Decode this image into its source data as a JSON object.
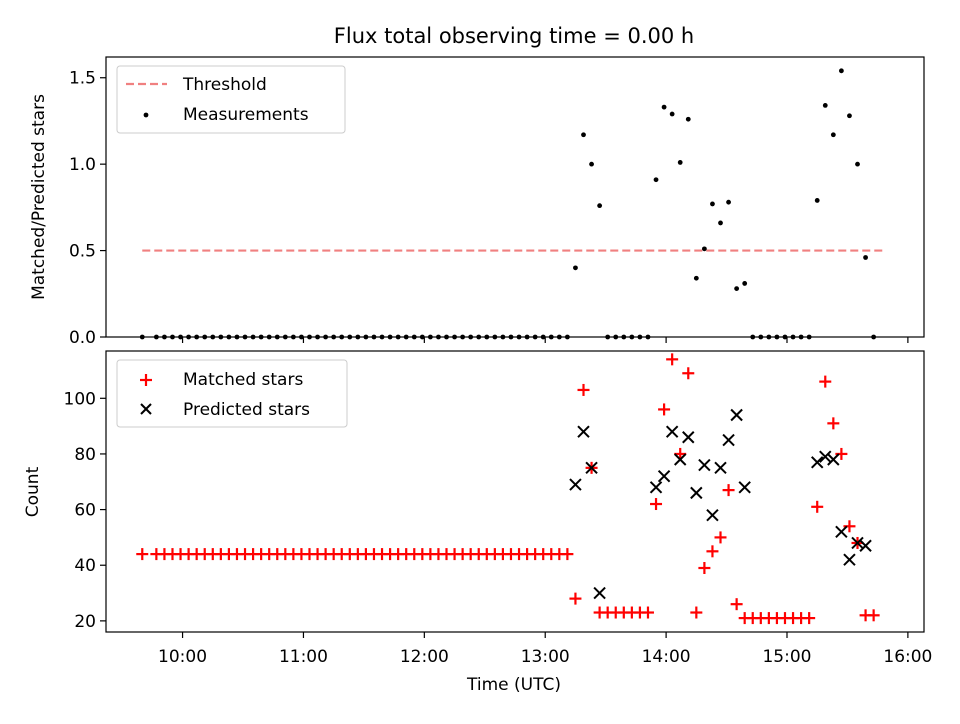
{
  "title": "Flux total observing time = 0.00 h",
  "chart_data": [
    {
      "type": "scatter",
      "ylabel": "Matched/Predicted stars",
      "xlabel": "",
      "xlim": [
        "09:22",
        "16:08"
      ],
      "ylim": [
        0,
        1.62
      ],
      "xticks": [
        "10:00",
        "11:00",
        "12:00",
        "13:00",
        "14:00",
        "15:00",
        "16:00"
      ],
      "yticks": [
        0.0,
        0.5,
        1.0,
        1.5
      ],
      "ytick_labels": [
        "0.0",
        "0.5",
        "1.0",
        "1.5"
      ],
      "legend_position": "upper-left",
      "grid": false,
      "threshold": {
        "name": "Threshold",
        "value": 0.5,
        "x_start": "09:40",
        "x_end": "15:48",
        "color": "#f08080",
        "style": "dashed"
      },
      "series": [
        {
          "name": "Measurements",
          "marker": "dot",
          "color": "#000000",
          "points": [
            [
              "09:40",
              0
            ],
            [
              "09:47",
              0
            ],
            [
              "09:51",
              0
            ],
            [
              "09:55",
              0
            ],
            [
              "09:59",
              0
            ],
            [
              "10:03",
              0
            ],
            [
              "10:07",
              0
            ],
            [
              "10:11",
              0
            ],
            [
              "10:15",
              0
            ],
            [
              "10:19",
              0
            ],
            [
              "10:23",
              0
            ],
            [
              "10:27",
              0
            ],
            [
              "10:31",
              0
            ],
            [
              "10:35",
              0
            ],
            [
              "10:39",
              0
            ],
            [
              "10:43",
              0
            ],
            [
              "10:47",
              0
            ],
            [
              "10:51",
              0
            ],
            [
              "10:55",
              0
            ],
            [
              "10:59",
              0
            ],
            [
              "11:03",
              0
            ],
            [
              "11:07",
              0
            ],
            [
              "11:11",
              0
            ],
            [
              "11:15",
              0
            ],
            [
              "11:19",
              0
            ],
            [
              "11:23",
              0
            ],
            [
              "11:27",
              0
            ],
            [
              "11:31",
              0
            ],
            [
              "11:35",
              0
            ],
            [
              "11:39",
              0
            ],
            [
              "11:43",
              0
            ],
            [
              "11:47",
              0
            ],
            [
              "11:51",
              0
            ],
            [
              "11:55",
              0
            ],
            [
              "11:59",
              0
            ],
            [
              "12:03",
              0
            ],
            [
              "12:07",
              0
            ],
            [
              "12:11",
              0
            ],
            [
              "12:15",
              0
            ],
            [
              "12:19",
              0
            ],
            [
              "12:23",
              0
            ],
            [
              "12:27",
              0
            ],
            [
              "12:31",
              0
            ],
            [
              "12:35",
              0
            ],
            [
              "12:39",
              0
            ],
            [
              "12:43",
              0
            ],
            [
              "12:47",
              0
            ],
            [
              "12:51",
              0
            ],
            [
              "12:55",
              0
            ],
            [
              "12:59",
              0
            ],
            [
              "13:03",
              0
            ],
            [
              "13:07",
              0
            ],
            [
              "13:11",
              0
            ],
            [
              "13:15",
              0.4
            ],
            [
              "13:19",
              1.17
            ],
            [
              "13:23",
              1.0
            ],
            [
              "13:27",
              0.76
            ],
            [
              "13:31",
              0
            ],
            [
              "13:35",
              0
            ],
            [
              "13:39",
              0
            ],
            [
              "13:43",
              0
            ],
            [
              "13:47",
              0
            ],
            [
              "13:51",
              0
            ],
            [
              "13:55",
              0.91
            ],
            [
              "13:59",
              1.33
            ],
            [
              "14:03",
              1.29
            ],
            [
              "14:07",
              1.01
            ],
            [
              "14:11",
              1.26
            ],
            [
              "14:15",
              0.34
            ],
            [
              "14:19",
              0.51
            ],
            [
              "14:23",
              0.77
            ],
            [
              "14:27",
              0.66
            ],
            [
              "14:31",
              0.78
            ],
            [
              "14:35",
              0.28
            ],
            [
              "14:39",
              0.31
            ],
            [
              "14:43",
              0
            ],
            [
              "14:47",
              0
            ],
            [
              "14:51",
              0
            ],
            [
              "14:55",
              0
            ],
            [
              "14:59",
              0
            ],
            [
              "15:03",
              0
            ],
            [
              "15:07",
              0
            ],
            [
              "15:11",
              0
            ],
            [
              "15:15",
              0.79
            ],
            [
              "15:19",
              1.34
            ],
            [
              "15:23",
              1.17
            ],
            [
              "15:27",
              1.54
            ],
            [
              "15:31",
              1.28
            ],
            [
              "15:35",
              1.0
            ],
            [
              "15:39",
              0.46
            ],
            [
              "15:43",
              0
            ]
          ]
        }
      ]
    },
    {
      "type": "scatter",
      "ylabel": "Count",
      "xlabel": "Time (UTC)",
      "xlim": [
        "09:22",
        "16:08"
      ],
      "ylim": [
        16,
        117
      ],
      "xticks": [
        "10:00",
        "11:00",
        "12:00",
        "13:00",
        "14:00",
        "15:00",
        "16:00"
      ],
      "yticks": [
        20,
        40,
        60,
        80,
        100
      ],
      "legend_position": "upper-left",
      "grid": false,
      "series": [
        {
          "name": "Matched stars",
          "marker": "plus",
          "color": "#ff0000",
          "points": [
            [
              "09:40",
              44
            ],
            [
              "09:47",
              44
            ],
            [
              "09:51",
              44
            ],
            [
              "09:55",
              44
            ],
            [
              "09:59",
              44
            ],
            [
              "10:03",
              44
            ],
            [
              "10:07",
              44
            ],
            [
              "10:11",
              44
            ],
            [
              "10:15",
              44
            ],
            [
              "10:19",
              44
            ],
            [
              "10:23",
              44
            ],
            [
              "10:27",
              44
            ],
            [
              "10:31",
              44
            ],
            [
              "10:35",
              44
            ],
            [
              "10:39",
              44
            ],
            [
              "10:43",
              44
            ],
            [
              "10:47",
              44
            ],
            [
              "10:51",
              44
            ],
            [
              "10:55",
              44
            ],
            [
              "10:59",
              44
            ],
            [
              "11:03",
              44
            ],
            [
              "11:07",
              44
            ],
            [
              "11:11",
              44
            ],
            [
              "11:15",
              44
            ],
            [
              "11:19",
              44
            ],
            [
              "11:23",
              44
            ],
            [
              "11:27",
              44
            ],
            [
              "11:31",
              44
            ],
            [
              "11:35",
              44
            ],
            [
              "11:39",
              44
            ],
            [
              "11:43",
              44
            ],
            [
              "11:47",
              44
            ],
            [
              "11:51",
              44
            ],
            [
              "11:55",
              44
            ],
            [
              "11:59",
              44
            ],
            [
              "12:03",
              44
            ],
            [
              "12:07",
              44
            ],
            [
              "12:11",
              44
            ],
            [
              "12:15",
              44
            ],
            [
              "12:19",
              44
            ],
            [
              "12:23",
              44
            ],
            [
              "12:27",
              44
            ],
            [
              "12:31",
              44
            ],
            [
              "12:35",
              44
            ],
            [
              "12:39",
              44
            ],
            [
              "12:43",
              44
            ],
            [
              "12:47",
              44
            ],
            [
              "12:51",
              44
            ],
            [
              "12:55",
              44
            ],
            [
              "12:59",
              44
            ],
            [
              "13:03",
              44
            ],
            [
              "13:07",
              44
            ],
            [
              "13:11",
              44
            ],
            [
              "13:15",
              28
            ],
            [
              "13:19",
              103
            ],
            [
              "13:23",
              75
            ],
            [
              "13:27",
              23
            ],
            [
              "13:31",
              23
            ],
            [
              "13:35",
              23
            ],
            [
              "13:39",
              23
            ],
            [
              "13:43",
              23
            ],
            [
              "13:47",
              23
            ],
            [
              "13:51",
              23
            ],
            [
              "13:55",
              62
            ],
            [
              "13:59",
              96
            ],
            [
              "14:03",
              114
            ],
            [
              "14:07",
              80
            ],
            [
              "14:11",
              109
            ],
            [
              "14:15",
              23
            ],
            [
              "14:19",
              39
            ],
            [
              "14:23",
              45
            ],
            [
              "14:27",
              50
            ],
            [
              "14:31",
              67
            ],
            [
              "14:35",
              26
            ],
            [
              "14:39",
              21
            ],
            [
              "14:43",
              21
            ],
            [
              "14:47",
              21
            ],
            [
              "14:51",
              21
            ],
            [
              "14:55",
              21
            ],
            [
              "14:59",
              21
            ],
            [
              "15:03",
              21
            ],
            [
              "15:07",
              21
            ],
            [
              "15:11",
              21
            ],
            [
              "15:15",
              61
            ],
            [
              "15:19",
              106
            ],
            [
              "15:23",
              91
            ],
            [
              "15:27",
              80
            ],
            [
              "15:31",
              54
            ],
            [
              "15:35",
              48
            ],
            [
              "15:39",
              22
            ],
            [
              "15:43",
              22
            ]
          ]
        },
        {
          "name": "Predicted stars",
          "marker": "x",
          "color": "#000000",
          "points": [
            [
              "13:15",
              69
            ],
            [
              "13:19",
              88
            ],
            [
              "13:23",
              75
            ],
            [
              "13:27",
              30
            ],
            [
              "13:55",
              68
            ],
            [
              "13:59",
              72
            ],
            [
              "14:03",
              88
            ],
            [
              "14:07",
              78
            ],
            [
              "14:11",
              86
            ],
            [
              "14:15",
              66
            ],
            [
              "14:19",
              76
            ],
            [
              "14:23",
              58
            ],
            [
              "14:27",
              75
            ],
            [
              "14:31",
              85
            ],
            [
              "14:35",
              94
            ],
            [
              "14:39",
              68
            ],
            [
              "15:15",
              77
            ],
            [
              "15:19",
              79
            ],
            [
              "15:23",
              78
            ],
            [
              "15:27",
              52
            ],
            [
              "15:31",
              42
            ],
            [
              "15:35",
              48
            ],
            [
              "15:39",
              47
            ]
          ]
        }
      ]
    }
  ]
}
